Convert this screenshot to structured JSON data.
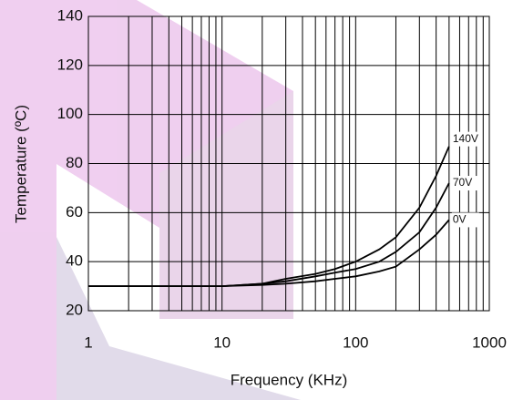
{
  "chart_data": {
    "type": "line",
    "xlabel": "Frequency (KHz)",
    "ylabel": "Temperature (ºC)",
    "x": [
      1,
      2,
      5,
      10,
      20,
      30,
      50,
      70,
      100,
      150,
      200,
      300,
      400,
      500
    ],
    "series": [
      {
        "name": "140V",
        "color": "#000000",
        "values": [
          30,
          30,
          30,
          30,
          31,
          33,
          35,
          37,
          40,
          45,
          50,
          62,
          75,
          87
        ]
      },
      {
        "name": "70V",
        "color": "#000000",
        "values": [
          30,
          30,
          30,
          30,
          31,
          32,
          34,
          35.5,
          37,
          40,
          44,
          52,
          62,
          72
        ]
      },
      {
        "name": "0V",
        "color": "#000000",
        "values": [
          30,
          30,
          30,
          30,
          30.5,
          31,
          32,
          33,
          34,
          36,
          38,
          45,
          51,
          57
        ]
      }
    ],
    "xlim": [
      1,
      1000
    ],
    "xticks": [
      1,
      10,
      100,
      1000
    ],
    "xscale": "log",
    "xminorticks": [
      2,
      3,
      4,
      5,
      6,
      7,
      8,
      9,
      20,
      30,
      40,
      50,
      60,
      70,
      80,
      90,
      200,
      300,
      400,
      500,
      600,
      700,
      800,
      900
    ],
    "ylim": [
      20,
      140
    ],
    "yticks": [
      20,
      40,
      60,
      80,
      100,
      120,
      140
    ],
    "grid": true
  }
}
